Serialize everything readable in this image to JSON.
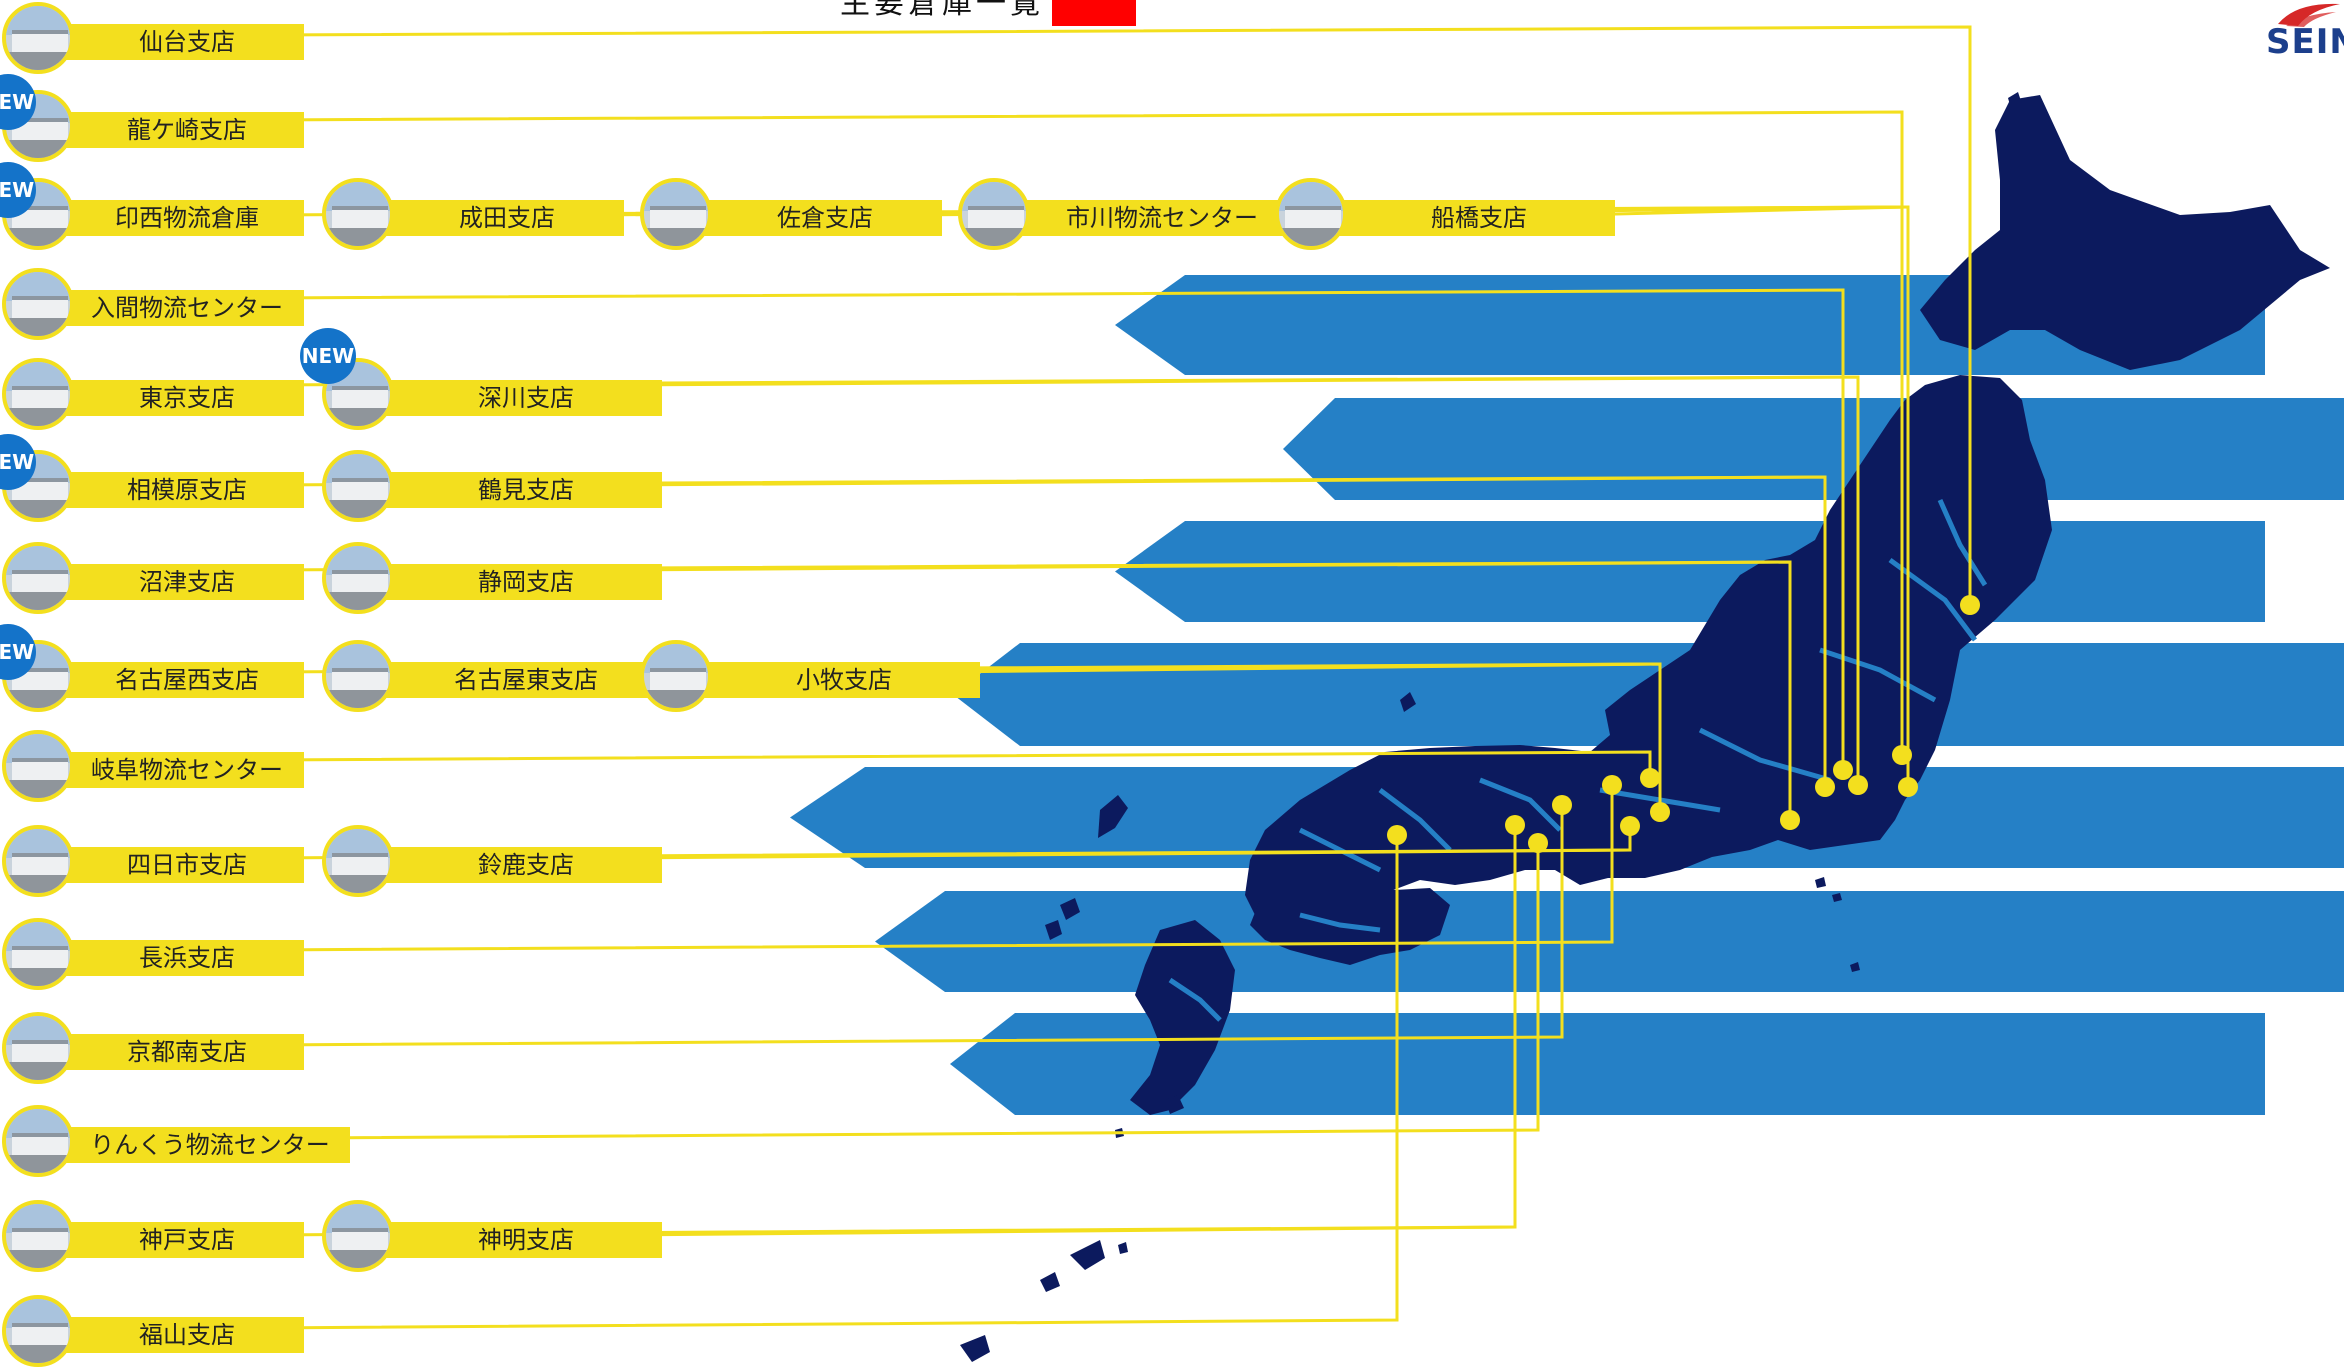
{
  "title": "主要倉庫一覧",
  "logo_text": "SEIN",
  "new_badge": "NEW",
  "colors": {
    "band": "#2580c6",
    "land": "#0c1a5e",
    "label_bar": "#f3df1e",
    "new_badge": "#1473c9",
    "title_mark": "#ff0000",
    "logo": "#1c3f8c"
  },
  "branches": [
    {
      "id": "sendai",
      "name": "仙台支店",
      "new": false
    },
    {
      "id": "ryugasaki",
      "name": "龍ケ崎支店",
      "new": true
    },
    {
      "id": "inzai",
      "name": "印西物流倉庫",
      "new": true
    },
    {
      "id": "narita",
      "name": "成田支店",
      "new": false
    },
    {
      "id": "sakura",
      "name": "佐倉支店",
      "new": false
    },
    {
      "id": "ichikawa",
      "name": "市川物流センター",
      "new": false
    },
    {
      "id": "funabashi",
      "name": "船橋支店",
      "new": false
    },
    {
      "id": "iruma",
      "name": "入間物流センター",
      "new": false
    },
    {
      "id": "tokyo",
      "name": "東京支店",
      "new": false
    },
    {
      "id": "fukagawa",
      "name": "深川支店",
      "new": true
    },
    {
      "id": "sagamihara",
      "name": "相模原支店",
      "new": true
    },
    {
      "id": "tsurumi",
      "name": "鶴見支店",
      "new": false
    },
    {
      "id": "numazu",
      "name": "沼津支店",
      "new": false
    },
    {
      "id": "shizuoka",
      "name": "静岡支店",
      "new": false
    },
    {
      "id": "nagoya-nishi",
      "name": "名古屋西支店",
      "new": true
    },
    {
      "id": "nagoya-higashi",
      "name": "名古屋東支店",
      "new": false
    },
    {
      "id": "komaki",
      "name": "小牧支店",
      "new": false
    },
    {
      "id": "gifu",
      "name": "岐阜物流センター",
      "new": false
    },
    {
      "id": "yokkaichi",
      "name": "四日市支店",
      "new": false
    },
    {
      "id": "suzuka",
      "name": "鈴鹿支店",
      "new": false
    },
    {
      "id": "nagahama",
      "name": "長浜支店",
      "new": false
    },
    {
      "id": "kyoto-minami",
      "name": "京都南支店",
      "new": false
    },
    {
      "id": "rinku",
      "name": "りんくう物流センター",
      "new": false
    },
    {
      "id": "kobe",
      "name": "神戸支店",
      "new": false
    },
    {
      "id": "shinmei",
      "name": "神明支店",
      "new": false
    },
    {
      "id": "fukuyama",
      "name": "福山支店",
      "new": false
    }
  ]
}
